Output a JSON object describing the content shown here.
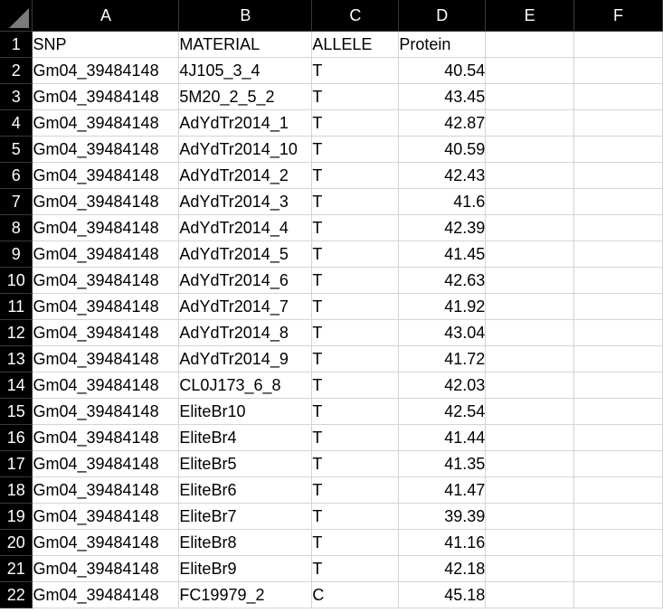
{
  "columns": [
    "A",
    "B",
    "C",
    "D",
    "E",
    "F"
  ],
  "rows": [
    [
      "SNP",
      "MATERIAL",
      "ALLELE",
      "Protein",
      "",
      ""
    ],
    [
      "Gm04_39484148",
      "4J105_3_4",
      "T",
      "40.54",
      "",
      ""
    ],
    [
      "Gm04_39484148",
      "5M20_2_5_2",
      "T",
      "43.45",
      "",
      ""
    ],
    [
      "Gm04_39484148",
      "AdYdTr2014_1",
      "T",
      "42.87",
      "",
      ""
    ],
    [
      "Gm04_39484148",
      "AdYdTr2014_10",
      "T",
      "40.59",
      "",
      ""
    ],
    [
      "Gm04_39484148",
      "AdYdTr2014_2",
      "T",
      "42.43",
      "",
      ""
    ],
    [
      "Gm04_39484148",
      "AdYdTr2014_3",
      "T",
      "41.6",
      "",
      ""
    ],
    [
      "Gm04_39484148",
      "AdYdTr2014_4",
      "T",
      "42.39",
      "",
      ""
    ],
    [
      "Gm04_39484148",
      "AdYdTr2014_5",
      "T",
      "41.45",
      "",
      ""
    ],
    [
      "Gm04_39484148",
      "AdYdTr2014_6",
      "T",
      "42.63",
      "",
      ""
    ],
    [
      "Gm04_39484148",
      "AdYdTr2014_7",
      "T",
      "41.92",
      "",
      ""
    ],
    [
      "Gm04_39484148",
      "AdYdTr2014_8",
      "T",
      "43.04",
      "",
      ""
    ],
    [
      "Gm04_39484148",
      "AdYdTr2014_9",
      "T",
      "41.72",
      "",
      ""
    ],
    [
      "Gm04_39484148",
      "CL0J173_6_8",
      "T",
      "42.03",
      "",
      ""
    ],
    [
      "Gm04_39484148",
      "EliteBr10",
      "T",
      "42.54",
      "",
      ""
    ],
    [
      "Gm04_39484148",
      "EliteBr4",
      "T",
      "41.44",
      "",
      ""
    ],
    [
      "Gm04_39484148",
      "EliteBr5",
      "T",
      "41.35",
      "",
      ""
    ],
    [
      "Gm04_39484148",
      "EliteBr6",
      "T",
      "41.47",
      "",
      ""
    ],
    [
      "Gm04_39484148",
      "EliteBr7",
      "T",
      "39.39",
      "",
      ""
    ],
    [
      "Gm04_39484148",
      "EliteBr8",
      "T",
      "41.16",
      "",
      ""
    ],
    [
      "Gm04_39484148",
      "EliteBr9",
      "T",
      "42.18",
      "",
      ""
    ],
    [
      "Gm04_39484148",
      "FC19979_2",
      "C",
      "45.18",
      "",
      ""
    ]
  ],
  "row_numbers": [
    "1",
    "2",
    "3",
    "4",
    "5",
    "6",
    "7",
    "8",
    "9",
    "10",
    "11",
    "12",
    "13",
    "14",
    "15",
    "16",
    "17",
    "18",
    "19",
    "20",
    "21",
    "22"
  ]
}
